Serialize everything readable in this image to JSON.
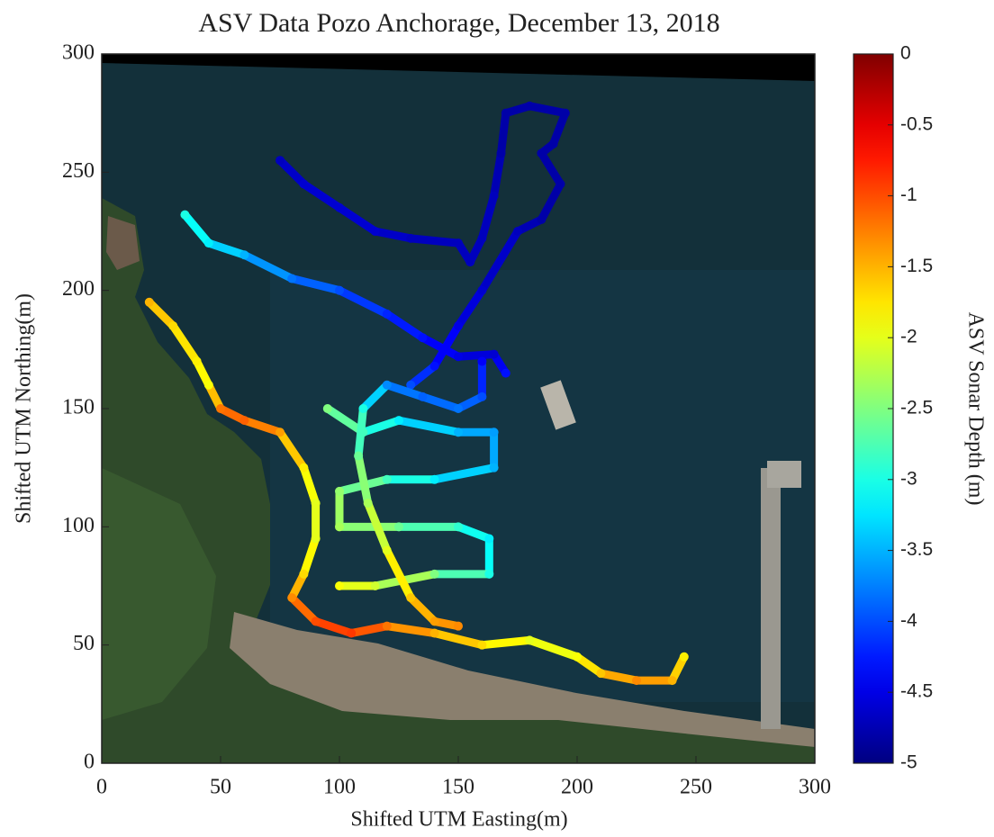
{
  "chart_data": {
    "type": "scatter",
    "title": "ASV Data Pozo Anchorage, December 13, 2018",
    "x_label": "Shifted UTM Easting(m)",
    "y_label": "Shifted UTM Northing(m)",
    "xlim": [
      0,
      300
    ],
    "ylim": [
      0,
      300
    ],
    "xticks": [
      0,
      50,
      100,
      150,
      200,
      250,
      300
    ],
    "yticks": [
      0,
      50,
      100,
      150,
      200,
      250,
      300
    ],
    "colorbar": {
      "label": "ASV Sonar Depth (m)",
      "lim": [
        -5,
        0
      ],
      "ticks": [
        0,
        -0.5,
        -1,
        -1.5,
        -2,
        -2.5,
        -3,
        -3.5,
        -4,
        -4.5,
        -5
      ],
      "colormap": "jet"
    },
    "series": [
      {
        "x": [
          75,
          85,
          100,
          115,
          130,
          150,
          155,
          160,
          165,
          168,
          170,
          180,
          195,
          190,
          185,
          193,
          185,
          175,
          160,
          150,
          140,
          130
        ],
        "y": [
          255,
          245,
          235,
          225,
          222,
          220,
          212,
          222,
          240,
          258,
          275,
          278,
          275,
          262,
          258,
          245,
          230,
          225,
          200,
          185,
          168,
          160
        ],
        "depth": [
          -4.7,
          -4.6,
          -4.6,
          -4.6,
          -4.7,
          -4.7,
          -4.7,
          -4.7,
          -4.7,
          -4.8,
          -4.8,
          -4.8,
          -4.8,
          -4.8,
          -4.8,
          -4.8,
          -4.8,
          -4.7,
          -4.6,
          -4.5,
          -4.3,
          -4.0
        ]
      },
      {
        "x": [
          35,
          45,
          60,
          80,
          100,
          120,
          135,
          150,
          165,
          170
        ],
        "y": [
          232,
          220,
          215,
          205,
          200,
          190,
          180,
          172,
          173,
          165
        ],
        "depth": [
          -3.0,
          -3.2,
          -3.5,
          -3.8,
          -4.0,
          -4.2,
          -4.3,
          -4.5,
          -4.6,
          -4.3
        ]
      },
      {
        "x": [
          20,
          30,
          40,
          45,
          50,
          60,
          75,
          85,
          90,
          90,
          85,
          80,
          90,
          105,
          120,
          140,
          160,
          180,
          200,
          210,
          225,
          240,
          245
        ],
        "y": [
          195,
          185,
          170,
          160,
          150,
          145,
          140,
          125,
          110,
          95,
          80,
          70,
          60,
          55,
          58,
          55,
          50,
          52,
          45,
          38,
          35,
          35,
          45
        ],
        "depth": [
          -1.5,
          -1.7,
          -1.8,
          -1.9,
          -1.2,
          -1.1,
          -1.4,
          -1.8,
          -2.0,
          -2.0,
          -1.7,
          -1.3,
          -1.0,
          -0.9,
          -1.2,
          -1.5,
          -1.7,
          -2.0,
          -1.9,
          -1.6,
          -1.3,
          -1.5,
          -1.8
        ]
      },
      {
        "x": [
          95,
          110,
          125,
          150,
          165,
          165,
          140,
          120,
          100,
          100,
          125,
          150,
          163,
          163,
          140,
          115,
          100
        ],
        "y": [
          150,
          140,
          145,
          140,
          140,
          125,
          120,
          120,
          115,
          100,
          100,
          100,
          95,
          80,
          80,
          75,
          75
        ],
        "depth": [
          -2.5,
          -2.8,
          -3.2,
          -3.5,
          -3.6,
          -3.5,
          -3.2,
          -2.8,
          -2.4,
          -2.3,
          -2.6,
          -2.9,
          -3.2,
          -3.0,
          -2.5,
          -2.1,
          -1.9
        ]
      },
      {
        "x": [
          160,
          160,
          150,
          135,
          120,
          110,
          108,
          112,
          120,
          130,
          140,
          150
        ],
        "y": [
          170,
          155,
          150,
          155,
          160,
          150,
          130,
          110,
          90,
          70,
          60,
          58
        ],
        "depth": [
          -4.4,
          -4.0,
          -3.8,
          -3.9,
          -3.7,
          -3.0,
          -2.6,
          -2.3,
          -2.0,
          -1.6,
          -1.4,
          -1.3
        ]
      }
    ]
  }
}
